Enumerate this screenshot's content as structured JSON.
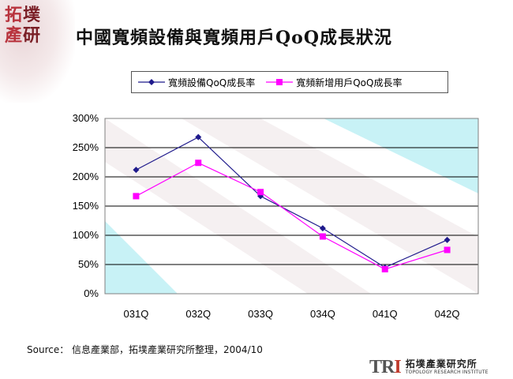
{
  "logo": {
    "line1": [
      "拓",
      "墣"
    ],
    "line2": [
      "產",
      "研"
    ]
  },
  "slide_title": "中國寬頻設備與寬頻用戶QoQ成長狀況",
  "chart_data": {
    "type": "line",
    "title": "中國寬頻設備與寬頻用戶QoQ成長狀況",
    "categories": [
      "031Q",
      "032Q",
      "033Q",
      "034Q",
      "041Q",
      "042Q"
    ],
    "series": [
      {
        "name": "寬頻設備QoQ成長率",
        "color": "#1f1a8c",
        "marker": "diamond",
        "values": [
          212,
          268,
          167,
          112,
          45,
          92
        ]
      },
      {
        "name": "寬頻新增用戶QoQ成長率",
        "color": "#ff00ff",
        "marker": "square",
        "values": [
          167,
          224,
          174,
          98,
          42,
          75
        ]
      }
    ],
    "ylim": [
      0,
      300
    ],
    "yticks": [
      "0%",
      "50%",
      "100%",
      "150%",
      "200%",
      "250%",
      "300%"
    ],
    "grid": true,
    "legend": "top"
  },
  "source": "Source： 信息產業部，拓墣產業研究所整理，2004/10",
  "footer_logo": {
    "mark_t": "TR",
    "mark_i": "I",
    "name": "拓墣產業研究所",
    "english": "TOPOLOGY RESEARCH INSTITUTE"
  }
}
